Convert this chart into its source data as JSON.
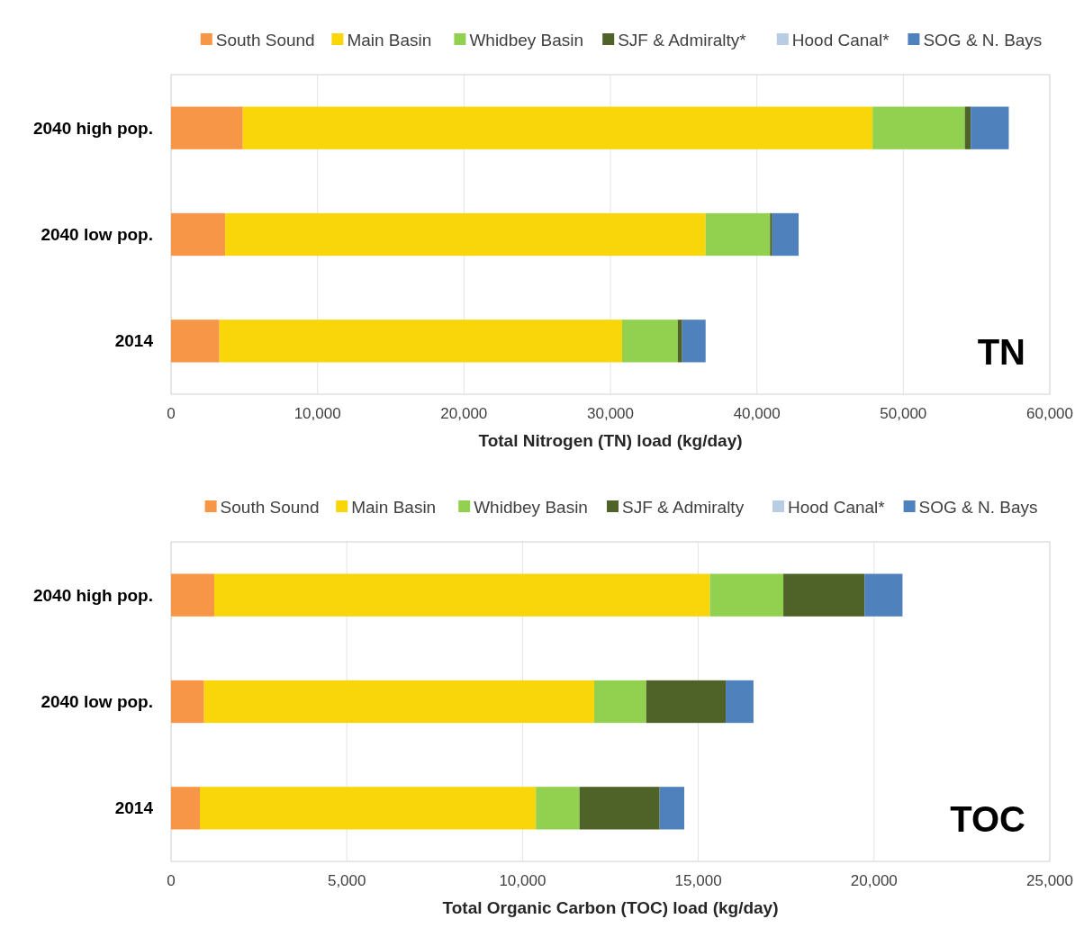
{
  "chart_data": [
    {
      "type": "bar",
      "orientation": "horizontal",
      "stacked": true,
      "xlabel": "Total Nitrogen (TN) load (kg/day)",
      "categories": [
        "2040 high pop.",
        "2040 low pop.",
        "2014"
      ],
      "series": [
        {
          "name": "South Sound",
          "color": "#f79646",
          "values": [
            4900,
            3700,
            3300
          ]
        },
        {
          "name": "Main Basin",
          "color": "#f9d60a",
          "values": [
            43000,
            32800,
            27500
          ]
        },
        {
          "name": "Whidbey Basin",
          "color": "#92d050",
          "values": [
            6300,
            4400,
            3800
          ]
        },
        {
          "name": "SJF & Admiralty*",
          "color": "#4f6228",
          "values": [
            400,
            150,
            300
          ]
        },
        {
          "name": "Hood Canal*",
          "color": "#b8cce4",
          "values": [
            0,
            0,
            0
          ]
        },
        {
          "name": "SOG & N. Bays",
          "color": "#4f81bd",
          "values": [
            2600,
            1800,
            1600
          ]
        }
      ],
      "xlim": [
        0,
        60000
      ],
      "xticks": [
        {
          "value": 0,
          "label": "0"
        },
        {
          "value": 10000,
          "label": "10,000"
        },
        {
          "value": 20000,
          "label": "20,000"
        },
        {
          "value": 30000,
          "label": "30,000"
        },
        {
          "value": 40000,
          "label": "40,000"
        },
        {
          "value": 50000,
          "label": "50,000"
        },
        {
          "value": 60000,
          "label": "60,000"
        }
      ],
      "grid": "x",
      "legend": "top",
      "annotations": [
        "TN"
      ]
    },
    {
      "type": "bar",
      "orientation": "horizontal",
      "stacked": true,
      "xlabel": "Total Organic Carbon (TOC) load (kg/day)",
      "categories": [
        "2040 high pop.",
        "2040 low pop.",
        "2014"
      ],
      "series": [
        {
          "name": "South Sound",
          "color": "#f79646",
          "values": [
            1230,
            940,
            820
          ]
        },
        {
          "name": "Main Basin",
          "color": "#f9d60a",
          "values": [
            14100,
            11100,
            9560
          ]
        },
        {
          "name": "Whidbey Basin",
          "color": "#92d050",
          "values": [
            2090,
            1480,
            1240
          ]
        },
        {
          "name": "SJF & Admiralty",
          "color": "#4f6228",
          "values": [
            2310,
            2260,
            2280
          ]
        },
        {
          "name": "Hood Canal*",
          "color": "#b8cce4",
          "values": [
            0,
            0,
            0
          ]
        },
        {
          "name": "SOG & N. Bays",
          "color": "#4f81bd",
          "values": [
            1080,
            790,
            700
          ]
        }
      ],
      "xlim": [
        0,
        25000
      ],
      "xticks": [
        {
          "value": 0,
          "label": "0"
        },
        {
          "value": 5000,
          "label": "5,000"
        },
        {
          "value": 10000,
          "label": "10,000"
        },
        {
          "value": 15000,
          "label": "15,000"
        },
        {
          "value": 20000,
          "label": "20,000"
        },
        {
          "value": 25000,
          "label": "25,000"
        }
      ],
      "grid": "x",
      "legend": "top",
      "annotations": [
        "TOC"
      ]
    }
  ]
}
